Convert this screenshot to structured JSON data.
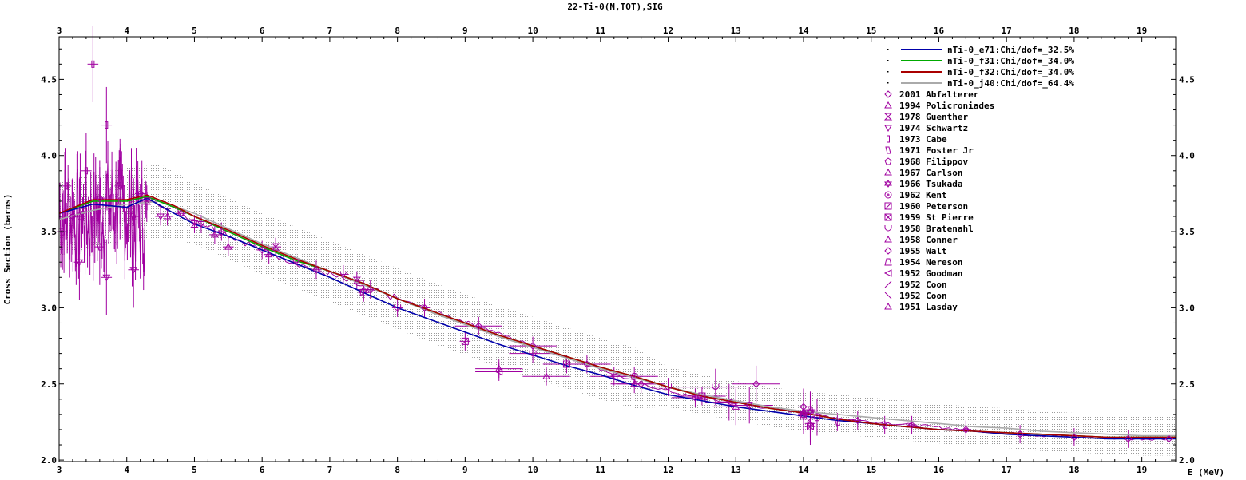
{
  "chart_data": {
    "type": "scatter",
    "title": "22-Ti-0(N,TOT),SIG",
    "xlabel": "E (MeV)",
    "ylabel": "Cross Section (barns)",
    "xlim": [
      3.0,
      19.5
    ],
    "ylim": [
      1.99,
      4.78
    ],
    "x_ticks": [
      "3",
      "4",
      "5",
      "6",
      "7",
      "8",
      "9",
      "10",
      "11",
      "12",
      "13",
      "14",
      "15",
      "16",
      "17",
      "18",
      "19"
    ],
    "y_ticks": [
      "2.0",
      "2.5",
      "3.0",
      "3.5",
      "4.0",
      "4.5"
    ],
    "grid": false,
    "legend_position": "top-right",
    "series": [
      {
        "name": "nTi-0_e71:Chi/dof=_32.5%",
        "kind": "line",
        "color": "#0000aa",
        "x": [
          3.0,
          3.5,
          4.0,
          4.3,
          4.7,
          5.0,
          5.5,
          6.0,
          6.5,
          7.0,
          7.5,
          8.0,
          8.5,
          9.0,
          9.5,
          10.0,
          10.5,
          11.0,
          11.5,
          12.0,
          12.5,
          13.0,
          13.5,
          14.0,
          14.5,
          15.0,
          15.5,
          16.0,
          16.5,
          17.0,
          17.5,
          18.0,
          18.5,
          19.0,
          19.5
        ],
        "y": [
          3.62,
          3.68,
          3.66,
          3.72,
          3.62,
          3.55,
          3.47,
          3.38,
          3.29,
          3.2,
          3.1,
          3.0,
          2.92,
          2.84,
          2.76,
          2.69,
          2.62,
          2.56,
          2.49,
          2.43,
          2.39,
          2.35,
          2.32,
          2.29,
          2.26,
          2.24,
          2.22,
          2.2,
          2.19,
          2.17,
          2.16,
          2.15,
          2.14,
          2.14,
          2.14
        ]
      },
      {
        "name": "nTi-0_f31:Chi/dof=_34.0%",
        "kind": "line",
        "color": "#00aa00",
        "x": [
          3.0,
          3.5,
          4.0,
          4.3,
          4.7,
          5.0,
          5.5,
          6.0,
          6.5,
          7.0,
          7.5,
          8.0,
          8.5,
          9.0,
          9.5,
          10.0,
          10.5,
          11.0,
          11.5,
          12.0,
          12.5,
          13.0,
          13.5,
          14.0,
          14.5,
          15.0,
          15.5,
          16.0,
          16.5,
          17.0,
          17.5,
          18.0,
          18.5,
          19.0,
          19.5
        ],
        "y": [
          3.62,
          3.7,
          3.7,
          3.73,
          3.66,
          3.6,
          3.5,
          3.4,
          3.31,
          3.24,
          3.16,
          3.06,
          2.98,
          2.9,
          2.82,
          2.75,
          2.68,
          2.61,
          2.55,
          2.48,
          2.42,
          2.38,
          2.34,
          2.31,
          2.27,
          2.24,
          2.22,
          2.2,
          2.19,
          2.18,
          2.17,
          2.16,
          2.15,
          2.15,
          2.15
        ]
      },
      {
        "name": "nTi-0_f32:Chi/dof=_34.0%",
        "kind": "line",
        "color": "#aa0000",
        "x": [
          3.0,
          3.5,
          4.0,
          4.3,
          4.7,
          5.0,
          5.5,
          6.0,
          6.5,
          7.0,
          7.5,
          8.0,
          8.5,
          9.0,
          9.5,
          10.0,
          10.5,
          11.0,
          11.5,
          12.0,
          12.5,
          13.0,
          13.5,
          14.0,
          14.5,
          15.0,
          15.5,
          16.0,
          16.5,
          17.0,
          17.5,
          18.0,
          18.5,
          19.0,
          19.5
        ],
        "y": [
          3.62,
          3.71,
          3.71,
          3.74,
          3.67,
          3.6,
          3.51,
          3.41,
          3.32,
          3.24,
          3.16,
          3.06,
          2.98,
          2.9,
          2.82,
          2.75,
          2.68,
          2.61,
          2.55,
          2.48,
          2.42,
          2.38,
          2.34,
          2.31,
          2.27,
          2.24,
          2.22,
          2.2,
          2.19,
          2.18,
          2.17,
          2.16,
          2.15,
          2.15,
          2.15
        ]
      },
      {
        "name": "nTi-0_j40:Chi/dof=_64.4%",
        "kind": "line",
        "color": "#aaaaaa",
        "x": [
          3.0,
          3.5,
          4.0,
          4.5,
          5.0,
          5.5,
          6.0,
          6.5,
          7.0,
          7.5,
          8.0,
          8.5,
          9.0,
          9.5,
          10.0,
          10.5,
          11.0,
          11.5,
          12.0,
          12.5,
          13.0,
          13.5,
          14.0,
          14.5,
          15.0,
          15.5,
          16.0,
          16.5,
          17.0,
          17.5,
          18.0,
          18.5,
          19.0,
          19.5
        ],
        "y": [
          3.58,
          3.64,
          3.68,
          3.7,
          3.62,
          3.52,
          3.42,
          3.33,
          3.24,
          3.15,
          3.06,
          2.97,
          2.89,
          2.81,
          2.74,
          2.67,
          2.6,
          2.54,
          2.48,
          2.43,
          2.39,
          2.35,
          2.32,
          2.3,
          2.28,
          2.26,
          2.24,
          2.22,
          2.21,
          2.19,
          2.18,
          2.17,
          2.16,
          2.16
        ]
      },
      {
        "name": "2001 Abfalterer",
        "kind": "points",
        "marker": "diamond",
        "x": [
          3.2,
          3.6,
          4.2,
          4.8,
          5.4,
          6.0,
          6.8,
          7.6,
          8.4,
          9.2,
          10.0,
          10.8,
          11.6,
          12.4,
          13.2,
          14.0,
          14.8,
          15.6,
          16.4,
          17.2,
          18.0,
          18.8,
          19.4
        ],
        "y": [
          3.6,
          3.72,
          3.75,
          3.62,
          3.5,
          3.38,
          3.25,
          3.12,
          3.0,
          2.88,
          2.75,
          2.63,
          2.5,
          2.41,
          2.36,
          2.31,
          2.26,
          2.23,
          2.2,
          2.17,
          2.15,
          2.14,
          2.14
        ]
      },
      {
        "name": "1994 Policroniades",
        "kind": "points",
        "marker": "triangle-up",
        "x": [
          5.5,
          7.5,
          9.5,
          10.2,
          11.5,
          13.0
        ],
        "y": [
          3.4,
          3.12,
          2.6,
          2.55,
          2.5,
          2.35
        ]
      },
      {
        "name": "1978 Guenther",
        "kind": "points",
        "marker": "hourglass",
        "x": [
          4.3,
          5.0,
          6.2,
          7.4
        ],
        "y": [
          3.7,
          3.55,
          3.4,
          3.18
        ]
      },
      {
        "name": "1974 Schwartz",
        "kind": "points",
        "marker": "triangle-down",
        "x": [
          3.3,
          3.7,
          4.1,
          4.5,
          5.1,
          6.5,
          7.2
        ],
        "y": [
          3.3,
          3.2,
          3.25,
          3.6,
          3.55,
          3.3,
          3.22
        ]
      },
      {
        "name": "1973 Cabe",
        "kind": "points",
        "marker": "bar",
        "x": [
          3.1,
          3.4,
          3.5,
          3.7,
          3.9
        ],
        "y": [
          3.8,
          3.9,
          4.6,
          4.2,
          3.7
        ]
      },
      {
        "name": "1971 Foster Jr",
        "kind": "points",
        "marker": "parallelogram",
        "x": [
          3.05,
          3.3,
          3.6,
          3.9,
          4.1,
          14.5,
          15.2
        ],
        "y": [
          3.5,
          3.6,
          3.4,
          3.8,
          3.6,
          2.25,
          2.23
        ]
      },
      {
        "name": "1968 Filippov",
        "kind": "points",
        "marker": "pentagon",
        "x": [
          14.0,
          14.2
        ],
        "y": [
          2.3,
          2.28
        ]
      },
      {
        "name": "1967 Carlson",
        "kind": "points",
        "marker": "triangle-up",
        "x": [
          4.6,
          5.3,
          6.1
        ],
        "y": [
          3.6,
          3.48,
          3.35
        ]
      },
      {
        "name": "1966 Tsukada",
        "kind": "points",
        "marker": "star",
        "x": [
          14.1
        ],
        "y": [
          2.32
        ]
      },
      {
        "name": "1962 Kent",
        "kind": "points",
        "marker": "circle",
        "x": [
          11.5,
          14.0
        ],
        "y": [
          2.55,
          2.3
        ]
      },
      {
        "name": "1960 Peterson",
        "kind": "points",
        "marker": "square-slash",
        "x": [
          7.5,
          9.0,
          10.5,
          12.5
        ],
        "y": [
          3.1,
          2.78,
          2.63,
          2.42
        ]
      },
      {
        "name": "1959 St Pierre",
        "kind": "points",
        "marker": "square-x",
        "x": [
          14.1
        ],
        "y": [
          2.22
        ]
      },
      {
        "name": "1958 Bratenahl",
        "kind": "points",
        "marker": "cup",
        "x": [
          8.0,
          10.0,
          12.0,
          12.7
        ],
        "y": [
          3.0,
          2.7,
          2.48,
          2.48
        ]
      },
      {
        "name": "1958 Conner",
        "kind": "points",
        "marker": "caret",
        "x": [
          14.0
        ],
        "y": [
          2.32
        ]
      },
      {
        "name": "1955 Walt",
        "kind": "points",
        "marker": "diamond",
        "x": [
          13.3,
          14.0
        ],
        "y": [
          2.5,
          2.35
        ]
      },
      {
        "name": "1954 Nereson",
        "kind": "points",
        "marker": "trapezoid",
        "x": [
          14.0,
          14.1
        ],
        "y": [
          2.29,
          2.33
        ]
      },
      {
        "name": "1952 Goodman",
        "kind": "points",
        "marker": "triangle-left",
        "x": [
          9.5,
          11.2,
          12.9
        ],
        "y": [
          2.58,
          2.55,
          2.38
        ]
      },
      {
        "name": "1952 Coon",
        "kind": "points",
        "marker": "slash",
        "x": [
          14.1
        ],
        "y": [
          2.27
        ]
      },
      {
        "name": "1952 Coon",
        "kind": "points",
        "marker": "backslash",
        "x": [
          14.0
        ],
        "y": [
          2.3
        ]
      },
      {
        "name": "1951 Lasday",
        "kind": "points",
        "marker": "triangle-up",
        "x": [
          14.1
        ],
        "y": [
          2.24
        ]
      }
    ]
  }
}
